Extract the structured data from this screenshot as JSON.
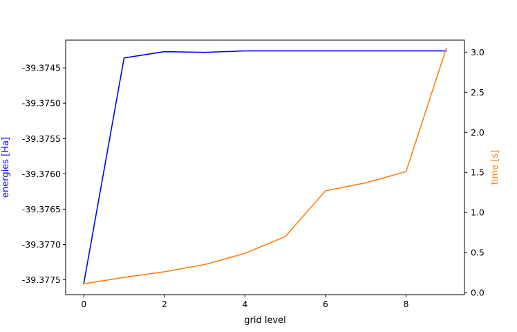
{
  "chart_data": {
    "type": "line",
    "title": "",
    "xlabel": "grid level",
    "ylabel": "energies [Ha]",
    "y2label": "time [s]",
    "x": [
      0,
      1,
      2,
      3,
      4,
      5,
      6,
      7,
      8,
      9
    ],
    "xlim": [
      -0.45,
      9.45
    ],
    "ylim": [
      -39.37771,
      -39.374107
    ],
    "y2lim": [
      -0.025,
      3.15
    ],
    "x_ticks": [
      "0",
      "2",
      "4",
      "6",
      "8"
    ],
    "x_tick_values": [
      0,
      2,
      4,
      6,
      8
    ],
    "y_ticks": [
      "-39.3745",
      "-39.3750",
      "-39.3755",
      "-39.3760",
      "-39.3765",
      "-39.3770",
      "-39.3775"
    ],
    "y_tick_values": [
      -39.3745,
      -39.375,
      -39.3755,
      -39.376,
      -39.3765,
      -39.377,
      -39.3775
    ],
    "y2_ticks": [
      "0.0",
      "0.5",
      "1.0",
      "1.5",
      "2.0",
      "2.5",
      "3.0"
    ],
    "y2_tick_values": [
      0,
      0.5,
      1.0,
      1.5,
      2.0,
      2.5,
      3.0
    ],
    "grid": false,
    "series": [
      {
        "axis": "left",
        "color": "#0000ff",
        "values": [
          -39.37755,
          -39.37436,
          -39.37427,
          -39.37428,
          -39.37426,
          -39.37426,
          -39.37426,
          -39.37426,
          -39.37426,
          -39.37426
        ]
      },
      {
        "axis": "right",
        "color": "#ff7f0e",
        "values": [
          0.11,
          0.19,
          0.26,
          0.35,
          0.49,
          0.7,
          1.27,
          1.37,
          1.51,
          3.05
        ]
      }
    ]
  }
}
